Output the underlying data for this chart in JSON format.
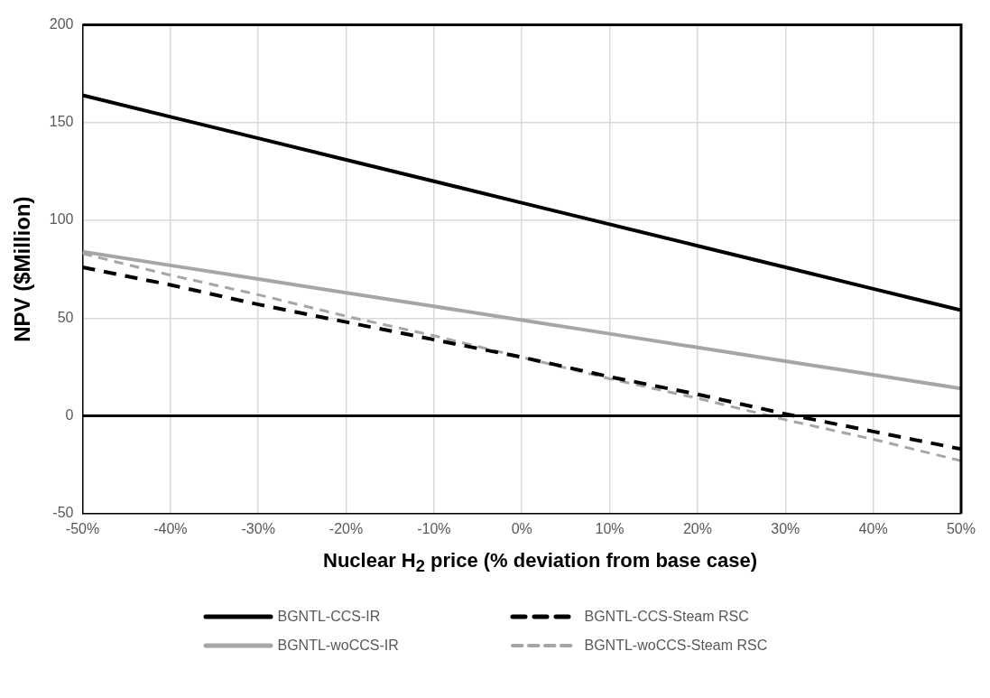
{
  "chart_data": {
    "type": "line",
    "xlabel": "Nuclear H$_{2}$ price (% deviation from base case)",
    "ylabel": "NPV ($Million)",
    "x": [
      -50,
      -40,
      -30,
      -20,
      -10,
      0,
      10,
      20,
      30,
      40,
      50
    ],
    "series": [
      {
        "name": "BGNTL-CCS-IR",
        "color": "#000000",
        "line_style": "solid",
        "values": [
          164,
          153,
          142,
          131,
          120,
          109,
          98,
          87,
          76,
          65,
          54
        ]
      },
      {
        "name": "BGNTL-CCS-Steam RSC",
        "color": "#000000",
        "line_style": "dashed",
        "values": [
          76,
          67,
          57,
          48,
          39,
          30,
          20,
          11,
          1,
          -8,
          -17
        ]
      },
      {
        "name": "BGNTL-woCCS-IR",
        "color": "#a6a6a6",
        "line_style": "solid",
        "values": [
          84,
          77,
          70,
          63,
          56,
          49,
          42,
          35,
          28,
          21,
          14
        ]
      },
      {
        "name": "BGNTL-woCCS-Steam RSC",
        "color": "#a6a6a6",
        "line_style": "dashed",
        "values": [
          83,
          72,
          62,
          51,
          41,
          30,
          19,
          9,
          -2,
          -12,
          -23
        ]
      }
    ],
    "xlim": [
      -50,
      50
    ],
    "xticks": [
      {
        "value": -50,
        "label": "-50%"
      },
      {
        "value": -40,
        "label": "-40%"
      },
      {
        "value": -30,
        "label": "-30%"
      },
      {
        "value": -20,
        "label": "-20%"
      },
      {
        "value": -10,
        "label": "-10%"
      },
      {
        "value": 0,
        "label": "0%"
      },
      {
        "value": 10,
        "label": "10%"
      },
      {
        "value": 20,
        "label": "20%"
      },
      {
        "value": 30,
        "label": "30%"
      },
      {
        "value": 40,
        "label": "40%"
      },
      {
        "value": 50,
        "label": "50%"
      }
    ],
    "ylim": [
      -50,
      200
    ],
    "yticks": [
      -50,
      0,
      50,
      100,
      150,
      200
    ],
    "ref_lines": [
      {
        "axis": "y",
        "value": 0,
        "color": "#000000"
      }
    ],
    "grid": true,
    "legend": "bottom",
    "marker": "none"
  }
}
